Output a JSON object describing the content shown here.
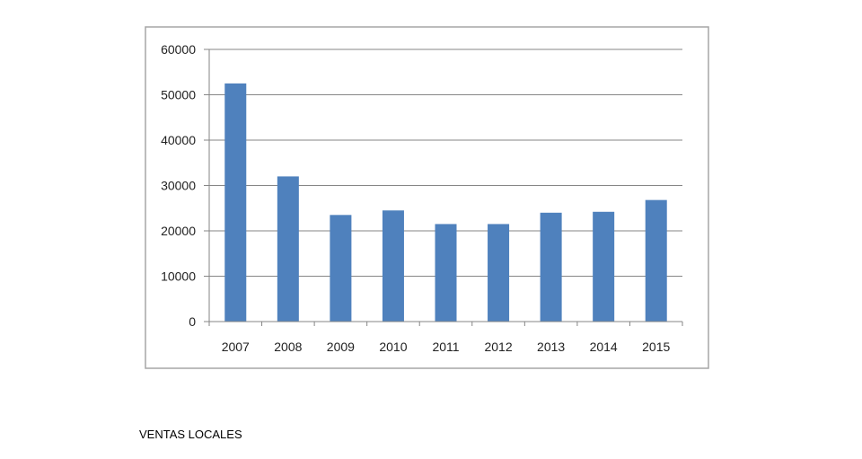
{
  "caption": "VENTAS LOCALES",
  "chart_data": {
    "type": "bar",
    "categories": [
      "2007",
      "2008",
      "2009",
      "2010",
      "2011",
      "2012",
      "2013",
      "2014",
      "2015"
    ],
    "values": [
      52500,
      32000,
      23500,
      24500,
      21500,
      21500,
      24000,
      24200,
      26800
    ],
    "title": "",
    "xlabel": "",
    "ylabel": "",
    "ylim": [
      0,
      60000
    ],
    "yticks": [
      0,
      10000,
      20000,
      30000,
      40000,
      50000,
      60000
    ],
    "grid": true,
    "legend": "none",
    "colors": {
      "bar": "#4F81BD",
      "grid": "#868686",
      "frame": "#a6a6a6",
      "axis": "#868686"
    }
  }
}
